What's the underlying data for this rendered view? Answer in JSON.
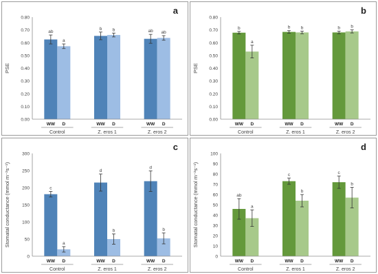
{
  "chart_data": [
    {
      "type": "bar",
      "panel_letter": "a",
      "ylabel": "PSE",
      "ylim": [
        0,
        0.8
      ],
      "yticks": [
        "0.00",
        "0.10",
        "0.20",
        "0.30",
        "0.40",
        "0.50",
        "0.60",
        "0.70",
        "0.80"
      ],
      "group_labels": [
        "Control",
        "Z. eros 1",
        "Z. eros 2"
      ],
      "treatment_labels": [
        "WW",
        "D"
      ],
      "colors": [
        "#4f83b8",
        "#9dbde4"
      ],
      "bars": [
        {
          "value": 0.625,
          "error": 0.035,
          "letter": "ab"
        },
        {
          "value": 0.572,
          "error": 0.018,
          "letter": "a"
        },
        {
          "value": 0.653,
          "error": 0.03,
          "letter": "b"
        },
        {
          "value": 0.66,
          "error": 0.015,
          "letter": "b"
        },
        {
          "value": 0.63,
          "error": 0.035,
          "letter": "ab"
        },
        {
          "value": 0.637,
          "error": 0.018,
          "letter": "ab"
        }
      ]
    },
    {
      "type": "bar",
      "panel_letter": "b",
      "ylabel": "PSE",
      "ylim": [
        0,
        0.8
      ],
      "yticks": [
        "0.00",
        "0.10",
        "0.20",
        "0.30",
        "0.40",
        "0.50",
        "0.60",
        "0.70",
        "0.80"
      ],
      "group_labels": [
        "Control",
        "Z. eros 1",
        "Z. eros 2"
      ],
      "treatment_labels": [
        "WW",
        "D"
      ],
      "colors": [
        "#64993b",
        "#a7c98a"
      ],
      "bars": [
        {
          "value": 0.678,
          "error": 0.01,
          "letter": "b"
        },
        {
          "value": 0.53,
          "error": 0.05,
          "letter": "a"
        },
        {
          "value": 0.684,
          "error": 0.01,
          "letter": "b"
        },
        {
          "value": 0.68,
          "error": 0.01,
          "letter": "b"
        },
        {
          "value": 0.68,
          "error": 0.01,
          "letter": "b"
        },
        {
          "value": 0.688,
          "error": 0.012,
          "letter": "b"
        }
      ]
    },
    {
      "type": "bar",
      "panel_letter": "c",
      "ylabel": "Stomatal conductance (mmol m⁻²s⁻¹)",
      "ylim": [
        0,
        300
      ],
      "yticks": [
        "0",
        "50",
        "100",
        "150",
        "200",
        "250",
        "300"
      ],
      "group_labels": [
        "Control",
        "Z. eros 1",
        "Z. eros 2"
      ],
      "treatment_labels": [
        "WW",
        "D"
      ],
      "colors": [
        "#4f83b8",
        "#9dbde4"
      ],
      "bars": [
        {
          "value": 181,
          "error": 8,
          "letter": "c"
        },
        {
          "value": 20,
          "error": 8,
          "letter": "a"
        },
        {
          "value": 215,
          "error": 25,
          "letter": "d"
        },
        {
          "value": 50,
          "error": 15,
          "letter": "b"
        },
        {
          "value": 219,
          "error": 30,
          "letter": "d"
        },
        {
          "value": 52,
          "error": 16,
          "letter": "b"
        }
      ]
    },
    {
      "type": "bar",
      "panel_letter": "d",
      "ylabel": "Stomatal conductance (mmol m⁻²s⁻¹)",
      "ylim": [
        0,
        100
      ],
      "yticks": [
        "0",
        "10",
        "20",
        "30",
        "40",
        "50",
        "60",
        "70",
        "80",
        "90",
        "100"
      ],
      "group_labels": [
        "Control",
        "Z. eros 1",
        "Z. eros 2"
      ],
      "treatment_labels": [
        "WW",
        "D"
      ],
      "colors": [
        "#64993b",
        "#a7c98a"
      ],
      "bars": [
        {
          "value": 46,
          "error": 10,
          "letter": "ab"
        },
        {
          "value": 37,
          "error": 8,
          "letter": "a"
        },
        {
          "value": 73,
          "error": 3,
          "letter": "c"
        },
        {
          "value": 54,
          "error": 6,
          "letter": "b"
        },
        {
          "value": 72,
          "error": 6,
          "letter": "c"
        },
        {
          "value": 57,
          "error": 10,
          "letter": "b"
        }
      ]
    }
  ]
}
